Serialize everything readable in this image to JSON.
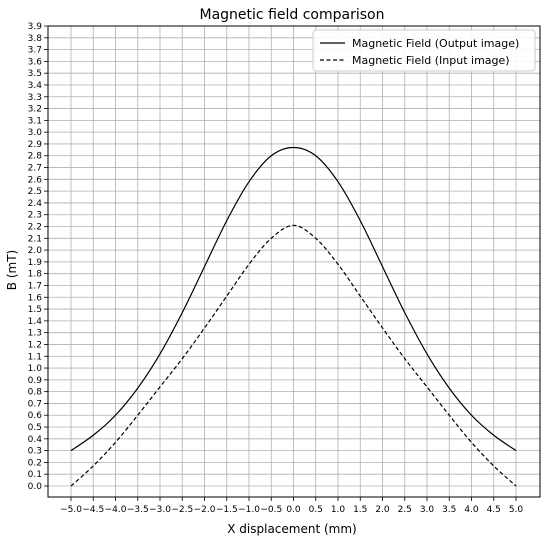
{
  "chart_data": {
    "type": "line",
    "title": "Magnetic field comparison",
    "xlabel": "X displacement (mm)",
    "ylabel": "B (mT)",
    "xlim": [
      -5.0,
      5.0
    ],
    "ylim": [
      0.0,
      3.9
    ],
    "grid": true,
    "legend_position": "top-right",
    "x_ticks": [
      -5.0,
      -4.5,
      -4.0,
      -3.5,
      -3.0,
      -2.5,
      -2.0,
      -1.5,
      -1.0,
      -0.5,
      0.0,
      0.5,
      1.0,
      1.5,
      2.0,
      2.5,
      3.0,
      3.5,
      4.0,
      4.5,
      5.0
    ],
    "x_tick_labels": [
      "−5.0",
      "−4.5",
      "−4.0",
      "−3.5",
      "−3.0",
      "−2.5",
      "−2.0",
      "−1.5",
      "−1.0",
      "−0.5",
      "0.0",
      "0.5",
      "1.0",
      "1.5",
      "2.0",
      "2.5",
      "3.0",
      "3.5",
      "4.0",
      "4.5",
      "5.0"
    ],
    "y_ticks": [
      0.0,
      0.1,
      0.2,
      0.3,
      0.4,
      0.5,
      0.6,
      0.7,
      0.8,
      0.9,
      1.0,
      1.1,
      1.2,
      1.3,
      1.4,
      1.5,
      1.6,
      1.7,
      1.8,
      1.9,
      2.0,
      2.1,
      2.2,
      2.3,
      2.4,
      2.5,
      2.6,
      2.7,
      2.8,
      2.9,
      3.0,
      3.1,
      3.2,
      3.3,
      3.4,
      3.5,
      3.6,
      3.7,
      3.8,
      3.9
    ],
    "y_tick_labels": [
      "0.0",
      "0.1",
      "0.2",
      "0.3",
      "0.4",
      "0.5",
      "0.6",
      "0.7",
      "0.8",
      "0.9",
      "1.0",
      "1.1",
      "1.2",
      "1.3",
      "1.4",
      "1.5",
      "1.6",
      "1.7",
      "1.8",
      "1.9",
      "2.0",
      "2.1",
      "2.2",
      "2.3",
      "2.4",
      "2.5",
      "2.6",
      "2.7",
      "2.8",
      "2.9",
      "3.0",
      "3.1",
      "3.2",
      "3.3",
      "3.4",
      "3.5",
      "3.6",
      "3.7",
      "3.8",
      "3.9"
    ],
    "x": [
      -5.0,
      -4.5,
      -4.0,
      -3.5,
      -3.0,
      -2.5,
      -2.0,
      -1.5,
      -1.0,
      -0.5,
      0.0,
      0.5,
      1.0,
      1.5,
      2.0,
      2.5,
      3.0,
      3.5,
      4.0,
      4.5,
      5.0
    ],
    "series": [
      {
        "name": "Magnetic Field (Output image)",
        "style": "solid",
        "color": "#000000",
        "values": [
          0.3,
          0.43,
          0.6,
          0.83,
          1.12,
          1.47,
          1.86,
          2.25,
          2.58,
          2.8,
          2.87,
          2.8,
          2.58,
          2.25,
          1.86,
          1.47,
          1.12,
          0.83,
          0.6,
          0.43,
          0.3
        ]
      },
      {
        "name": "Magnetic Field (Input image)",
        "style": "dashed",
        "color": "#000000",
        "values": [
          0.0,
          0.17,
          0.37,
          0.6,
          0.84,
          1.08,
          1.34,
          1.61,
          1.88,
          2.1,
          2.21,
          2.1,
          1.88,
          1.61,
          1.34,
          1.08,
          0.84,
          0.6,
          0.37,
          0.17,
          0.0
        ]
      }
    ]
  }
}
